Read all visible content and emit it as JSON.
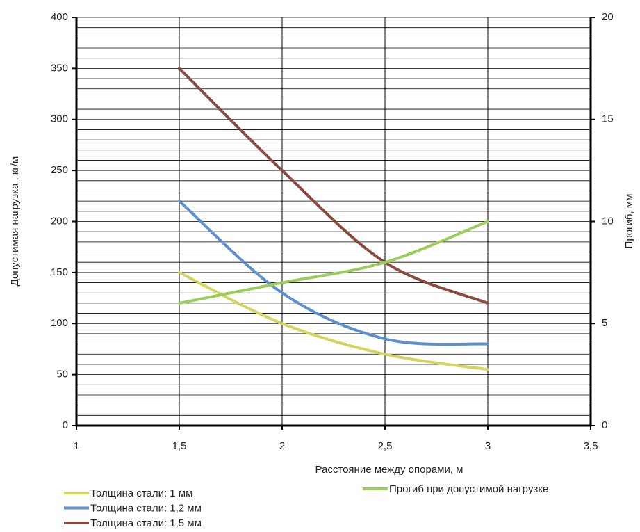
{
  "chart_data": {
    "type": "line",
    "x_label": "Расстояние между опорами, м",
    "y_label": "Допустимая нагрузка , кг/м",
    "y2_label": "Прогиб, мм",
    "x": [
      1.5,
      2,
      2.5,
      3
    ],
    "series": [
      {
        "name": "Толщина стали: 1 мм",
        "color": "#d5d45e",
        "values": [
          150,
          100,
          70,
          55
        ]
      },
      {
        "name": "Толщина стали: 1,2 мм",
        "color": "#5b8fcf",
        "values": [
          220,
          130,
          85,
          80
        ]
      },
      {
        "name": "Толщина стали: 1,5 мм",
        "color": "#8b4a3e",
        "values": [
          350,
          250,
          160,
          120
        ]
      },
      {
        "name": "Прогиб при допустимой нагрузке",
        "color": "#9acd5a",
        "values": [
          6,
          7,
          8,
          10
        ],
        "axis": "y2"
      }
    ],
    "xlim": [
      1,
      3.5
    ],
    "xticks": [
      1,
      {
        "value": 1.5,
        "label": "1,5"
      },
      2,
      {
        "value": 2.5,
        "label": "2,5"
      },
      3,
      {
        "value": 3.5,
        "label": "3,5"
      }
    ],
    "ylim": [
      0,
      400
    ],
    "yticks": [
      0,
      50,
      100,
      150,
      200,
      250,
      300,
      350,
      400
    ],
    "y2lim": [
      0,
      20
    ],
    "y2ticks": [
      0,
      5,
      10,
      15,
      20
    ],
    "grid": true,
    "minor_grid_step": 10,
    "smooth": true
  }
}
